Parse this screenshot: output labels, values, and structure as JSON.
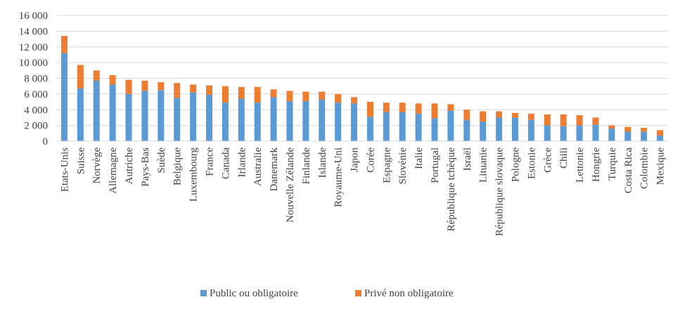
{
  "chart_data": {
    "type": "bar",
    "stacked": true,
    "ylim": [
      0,
      16000
    ],
    "yticks": [
      0,
      2000,
      4000,
      6000,
      8000,
      10000,
      12000,
      14000,
      16000
    ],
    "ytick_labels": [
      "0",
      "2 000",
      "4 000",
      "6 000",
      "8 000",
      "10 000",
      "12 000",
      "14 000",
      "16 000"
    ],
    "grid": true,
    "legend_position": "bottom",
    "categories": [
      "Etats-Unis",
      "Suisse",
      "Norvège",
      "Allemagne",
      "Autriche",
      "Pays-Bas",
      "Suède",
      "Belgique",
      "Luxembourg",
      "France",
      "Canada",
      "Irlande",
      "Australie",
      "Danemark",
      "Nouvelle Zélande",
      "Finlande",
      "Islande",
      "Royaume-Uni",
      "Japon",
      "Corée",
      "Espagne",
      "Slovénie",
      "Italie",
      "Portugal",
      "République tchèque",
      "Israël",
      "Lituanie",
      "République slovaque",
      "Pologne",
      "Estonie",
      "Grèce",
      "Chili",
      "Lettonie",
      "Hongrie",
      "Turquie",
      "Costa Rica",
      "Colombie",
      "Mexique"
    ],
    "series": [
      {
        "name": "Public ou obligatoire",
        "color": "#5B9BD5",
        "values": [
          11200,
          6700,
          7700,
          7200,
          6000,
          6400,
          6500,
          5500,
          6200,
          5900,
          4900,
          5400,
          4900,
          5600,
          5100,
          5100,
          5300,
          4900,
          4800,
          3100,
          3700,
          3700,
          3500,
          2900,
          3900,
          2700,
          2500,
          3000,
          3000,
          2700,
          2000,
          1900,
          2000,
          2100,
          1600,
          1200,
          1200,
          700
        ]
      },
      {
        "name": "Privé non obligatoire",
        "color": "#ED7D31",
        "values": [
          2200,
          3000,
          1300,
          1200,
          1800,
          1300,
          1000,
          1900,
          1000,
          1200,
          2100,
          1500,
          2000,
          1000,
          1300,
          1200,
          1000,
          1100,
          800,
          1900,
          1200,
          1200,
          1300,
          1900,
          800,
          1300,
          1300,
          800,
          600,
          800,
          1400,
          1500,
          1300,
          900,
          400,
          600,
          500,
          700
        ]
      }
    ]
  }
}
